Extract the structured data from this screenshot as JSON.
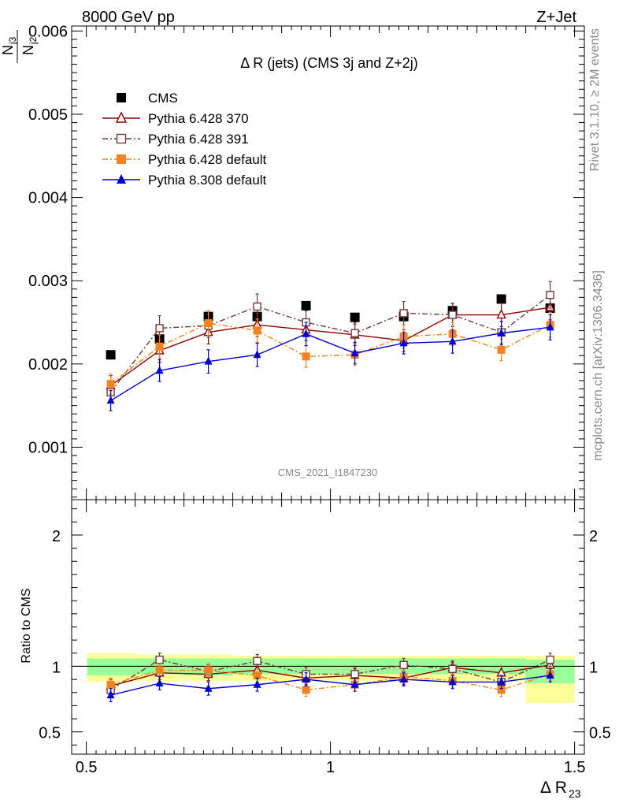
{
  "header": {
    "left": "8000 GeV pp",
    "right": "Z+Jet",
    "side_top": "Rivet 3.1.10, ≥ 2M events",
    "side_bottom": "mcplots.cern.ch [arXiv:1306.3436]"
  },
  "chart_data": [
    {
      "type": "line",
      "title": "Δ R (jets) (CMS 3j and Z+2j)",
      "ylabel_num": "N",
      "ylabel_num_sub": "j3",
      "ylabel_den": "N",
      "ylabel_den_sub": "j2",
      "watermark": "CMS_2021_I1847230",
      "xlim": [
        0.47,
        1.52
      ],
      "ylim": [
        0.00037,
        0.00606
      ],
      "yticks": [
        {
          "value": 0.001,
          "label": "0.001"
        },
        {
          "value": 0.002,
          "label": "0.002"
        },
        {
          "value": 0.003,
          "label": "0.003"
        },
        {
          "value": 0.004,
          "label": "0.004"
        },
        {
          "value": 0.005,
          "label": "0.005"
        },
        {
          "value": 0.006,
          "label": "0.006"
        }
      ],
      "x": [
        0.55,
        0.65,
        0.75,
        0.85,
        0.95,
        1.05,
        1.15,
        1.25,
        1.35,
        1.45
      ],
      "legend_position": "top-left",
      "series": [
        {
          "name": "CMS",
          "color": "#000000",
          "marker": "square-filled",
          "line": "none",
          "values": [
            0.00211,
            0.0023,
            0.00257,
            0.00257,
            0.0027,
            0.00256,
            0.00257,
            0.00264,
            0.00278,
            0.00267
          ],
          "errors": [
            0,
            0,
            0,
            0,
            0,
            0,
            0,
            0,
            0,
            0
          ]
        },
        {
          "name": "Pythia 6.428 370",
          "color": "#8b0000",
          "marker": "triangle-open",
          "line": "solid",
          "values": [
            0.00174,
            0.00216,
            0.00238,
            0.00247,
            0.00241,
            0.00235,
            0.00228,
            0.00259,
            0.00259,
            0.00268
          ],
          "errors": [
            0.00012,
            0.00014,
            0.00014,
            0.00014,
            0.00013,
            0.00013,
            0.00013,
            0.00014,
            0.00014,
            0.00015
          ]
        },
        {
          "name": "Pythia 6.428 391",
          "color": "#6e3a3a",
          "marker": "square-open",
          "line": "dashdot",
          "values": [
            0.00166,
            0.00243,
            0.00246,
            0.00269,
            0.0025,
            0.00237,
            0.00261,
            0.00259,
            0.00238,
            0.00283
          ],
          "errors": [
            0.00012,
            0.00015,
            0.00014,
            0.00015,
            0.00014,
            0.00013,
            0.00014,
            0.00014,
            0.00013,
            0.00016
          ]
        },
        {
          "name": "Pythia 6.428 default",
          "color": "#f58220",
          "marker": "square-filled",
          "line": "dashdot",
          "values": [
            0.00176,
            0.00221,
            0.00249,
            0.0024,
            0.00209,
            0.00211,
            0.00233,
            0.00236,
            0.00217,
            0.00247
          ],
          "errors": [
            0.00012,
            0.00014,
            0.00015,
            0.00014,
            0.00013,
            0.00013,
            0.00014,
            0.00014,
            0.00013,
            0.00015
          ]
        },
        {
          "name": "Pythia 8.308 default",
          "color": "#0000cc",
          "marker": "triangle-filled",
          "line": "solid",
          "values": [
            0.00156,
            0.00192,
            0.00203,
            0.00211,
            0.00236,
            0.00213,
            0.00225,
            0.00227,
            0.00237,
            0.00244
          ],
          "errors": [
            0.00012,
            0.00013,
            0.00014,
            0.00014,
            0.00014,
            0.00013,
            0.00013,
            0.00014,
            0.00014,
            0.00015
          ]
        }
      ]
    },
    {
      "type": "line",
      "title": "",
      "ylabel": "Ratio to CMS",
      "xlabel": "Δ R",
      "xlabel_sub": "23",
      "xlim": [
        0.47,
        1.52
      ],
      "ylim": [
        0.33,
        2.27
      ],
      "xticks": [
        {
          "value": 0.5,
          "label": "0.5"
        },
        {
          "value": 1.0,
          "label": "1"
        },
        {
          "value": 1.5,
          "label": "1.5"
        }
      ],
      "yticks": [
        {
          "value": 0.5,
          "label": "0.5"
        },
        {
          "value": 1.0,
          "label": "1"
        },
        {
          "value": 2.0,
          "label": "2"
        }
      ],
      "x": [
        0.55,
        0.65,
        0.75,
        0.85,
        0.95,
        1.05,
        1.15,
        1.25,
        1.35,
        1.45
      ],
      "bands": {
        "edges": [
          0.5,
          0.6,
          0.7,
          0.8,
          0.9,
          1.0,
          1.1,
          1.2,
          1.3,
          1.4,
          1.5
        ],
        "stat": [
          [
            0.93,
            1.06
          ],
          [
            0.94,
            1.06
          ],
          [
            0.93,
            1.06
          ],
          [
            0.94,
            1.06
          ],
          [
            0.94,
            1.06
          ],
          [
            0.94,
            1.06
          ],
          [
            0.94,
            1.06
          ],
          [
            0.94,
            1.06
          ],
          [
            0.94,
            1.06
          ],
          [
            0.87,
            1.05
          ]
        ],
        "total": [
          [
            0.88,
            1.1
          ],
          [
            0.89,
            1.09
          ],
          [
            0.89,
            1.09
          ],
          [
            0.89,
            1.08
          ],
          [
            0.89,
            1.08
          ],
          [
            0.89,
            1.08
          ],
          [
            0.89,
            1.08
          ],
          [
            0.89,
            1.08
          ],
          [
            0.89,
            1.08
          ],
          [
            0.72,
            1.08
          ]
        ]
      },
      "series": [
        {
          "name": "Pythia 6.428 370",
          "color": "#8b0000",
          "marker": "triangle-open",
          "line": "solid",
          "values": [
            0.85,
            0.95,
            0.94,
            0.97,
            0.91,
            0.93,
            0.91,
            0.99,
            0.95,
            1.01
          ],
          "errors": [
            0.05,
            0.05,
            0.05,
            0.05,
            0.05,
            0.05,
            0.05,
            0.05,
            0.05,
            0.05
          ]
        },
        {
          "name": "Pythia 6.428 391",
          "color": "#6e3a3a",
          "marker": "square-open",
          "line": "dashdot",
          "values": [
            0.82,
            1.05,
            0.96,
            1.04,
            0.94,
            0.94,
            1.01,
            0.98,
            0.88,
            1.05
          ],
          "errors": [
            0.05,
            0.05,
            0.05,
            0.05,
            0.05,
            0.05,
            0.05,
            0.05,
            0.05,
            0.05
          ]
        },
        {
          "name": "Pythia 6.428 default",
          "color": "#f58220",
          "marker": "square-filled",
          "line": "dashdot",
          "values": [
            0.86,
            0.97,
            0.97,
            0.93,
            0.82,
            0.86,
            0.92,
            0.89,
            0.82,
            0.94
          ],
          "errors": [
            0.05,
            0.05,
            0.05,
            0.05,
            0.05,
            0.05,
            0.05,
            0.05,
            0.05,
            0.05
          ]
        },
        {
          "name": "Pythia 8.308 default",
          "color": "#0000cc",
          "marker": "triangle-filled",
          "line": "solid",
          "values": [
            0.78,
            0.87,
            0.83,
            0.86,
            0.9,
            0.86,
            0.9,
            0.88,
            0.88,
            0.93
          ],
          "errors": [
            0.05,
            0.05,
            0.05,
            0.05,
            0.05,
            0.05,
            0.05,
            0.05,
            0.05,
            0.05
          ]
        }
      ]
    }
  ]
}
